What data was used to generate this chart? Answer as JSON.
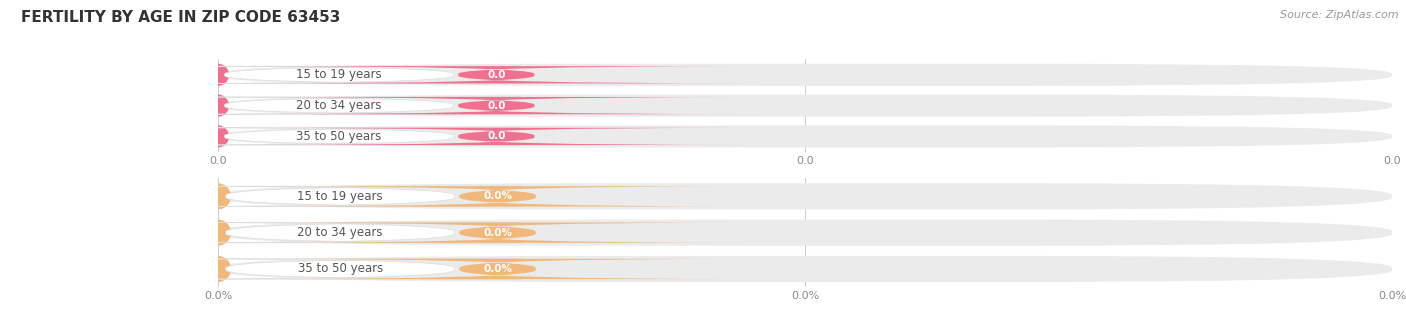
{
  "title": "FERTILITY BY AGE IN ZIP CODE 63453",
  "source_text": "Source: ZipAtlas.com",
  "groups": [
    {
      "categories": [
        "15 to 19 years",
        "20 to 34 years",
        "35 to 50 years"
      ],
      "values": [
        0.0,
        0.0,
        0.0
      ],
      "bar_color": "#f07090",
      "bg_color": "#ebebeb",
      "value_labels": [
        "0.0",
        "0.0",
        "0.0"
      ],
      "x_tick_labels": [
        "0.0",
        "0.0",
        "0.0"
      ]
    },
    {
      "categories": [
        "15 to 19 years",
        "20 to 34 years",
        "35 to 50 years"
      ],
      "values": [
        0.0,
        0.0,
        0.0
      ],
      "bar_color": "#f0b87a",
      "bg_color": "#ebebeb",
      "value_labels": [
        "0.0%",
        "0.0%",
        "0.0%"
      ],
      "x_tick_labels": [
        "0.0%",
        "0.0%",
        "0.0%"
      ]
    }
  ],
  "background_color": "#ffffff",
  "grid_color": "#cccccc",
  "title_fontsize": 11,
  "label_fontsize": 8.5,
  "tick_fontsize": 8,
  "source_fontsize": 8
}
